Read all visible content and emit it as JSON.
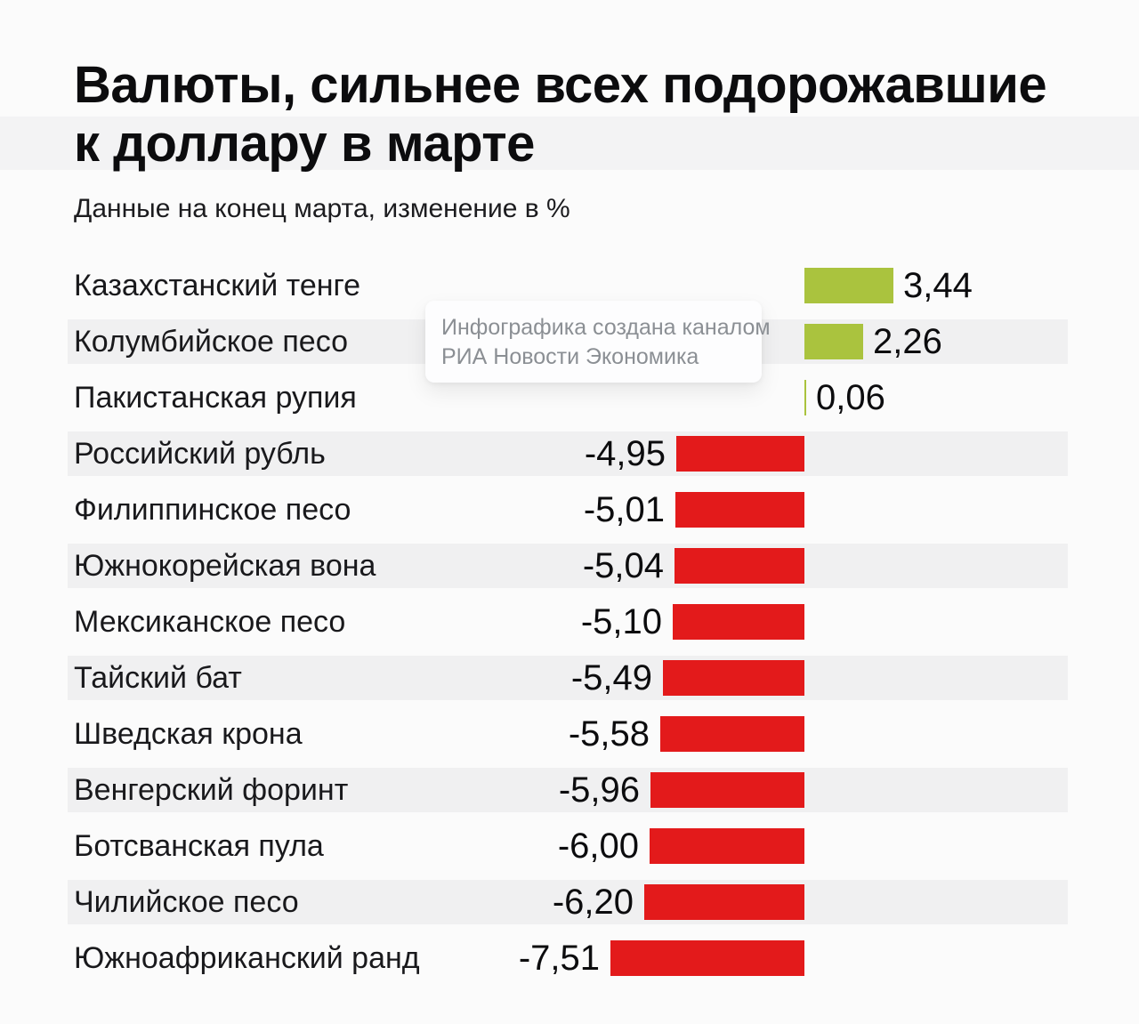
{
  "page": {
    "title_line1": "Валюты, сильнее всех подорожавшие",
    "title_line2": "к доллару в марте",
    "subtitle": "Данные на конец марта, изменение в %"
  },
  "tooltip": {
    "line1": "Инфографика создана каналом",
    "line2": "РИА Новости Экономика"
  },
  "colors": {
    "positive_green": "#aac33e",
    "negative_red": "#e31a1b",
    "row_stripe": "#f0f0f1",
    "background": "#fbfbfb",
    "tooltip_text": "#8b8f94"
  },
  "chart_data": {
    "type": "bar",
    "orientation": "horizontal",
    "title": "Валюты, сильнее всех подорожавшие к доллару в марте",
    "subtitle": "Данные на конец марта, изменение в %",
    "unit": "%",
    "xlim": [
      -7.51,
      3.44
    ],
    "grid": false,
    "legend": "none",
    "categories": [
      "Казахстанский тенге",
      "Колумбийское песо",
      "Пакистанская рупия",
      "Российский рубль",
      "Филиппинское песо",
      "Южнокорейская вона",
      "Мексиканское песо",
      "Тайский бат",
      "Шведская крона",
      "Венгерский форинт",
      "Ботсванская пула",
      "Чилийское песо",
      "Южноафриканский ранд"
    ],
    "values": [
      3.44,
      2.26,
      0.06,
      -4.95,
      -5.01,
      -5.04,
      -5.1,
      -5.49,
      -5.58,
      -5.96,
      -6.0,
      -6.2,
      -7.51
    ],
    "value_labels": [
      "3,44",
      "2,26",
      "0,06",
      "-4,95",
      "-5,01",
      "-5,04",
      "-5,10",
      "-5,49",
      "-5,58",
      "-5,96",
      "-6,00",
      "-6,20",
      "-7,51"
    ],
    "positive_color": "#aac33e",
    "negative_color": "#e31a1b"
  }
}
